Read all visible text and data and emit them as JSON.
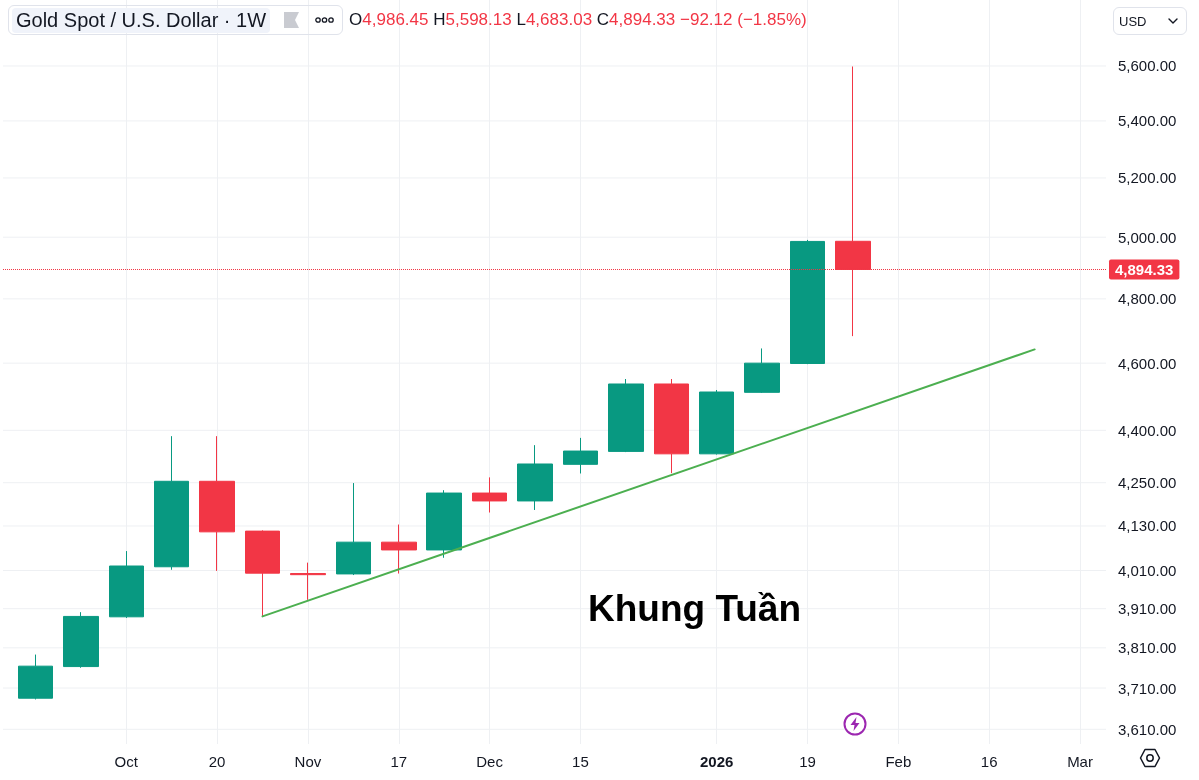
{
  "chart_data": {
    "type": "candlestick",
    "title": "Gold Spot / U.S. Dollar · 1W",
    "subtitle": "O4,986.45 H5,598.13 L4,683.03 C4,894.33 −92.12 (−1.85%)",
    "ylabel": "USD",
    "series": [
      {
        "x": [
          "2025-09-22",
          "2025-09-29",
          "2025-10-06",
          "2025-10-13",
          "2025-10-20",
          "2025-10-27",
          "2025-11-03",
          "2025-11-10",
          "2025-11-17",
          "2025-11-24",
          "2025-12-01",
          "2025-12-08",
          "2025-12-15",
          "2025-12-22",
          "2025-12-29",
          "2026-01-05",
          "2026-01-12",
          "2026-01-19",
          "2026-01-26"
        ],
        "ohlc": [
          [
            3685,
            3793,
            3682,
            3764
          ],
          [
            3763,
            3901,
            3760,
            3890
          ],
          [
            3889,
            4062,
            3886,
            4022
          ],
          [
            4020,
            4383,
            4012,
            4254
          ],
          [
            4254,
            4383,
            4009,
            4114
          ],
          [
            4116,
            4118,
            3890,
            4003
          ],
          [
            4002,
            4031,
            3933,
            3999
          ],
          [
            4001,
            4249,
            3998,
            4086
          ],
          [
            4086,
            4134,
            4002,
            4065
          ],
          [
            4065,
            4229,
            4044,
            4221
          ],
          [
            4221,
            4265,
            4167,
            4199
          ],
          [
            4199,
            4357,
            4174,
            4303
          ],
          [
            4302,
            4378,
            4276,
            4340
          ],
          [
            4339,
            4552,
            4337,
            4537
          ],
          [
            4537,
            4552,
            4277,
            4332
          ],
          [
            4332,
            4519,
            4330,
            4513
          ],
          [
            4512,
            4645,
            4510,
            4600
          ],
          [
            4599,
            4991,
            4597,
            4986
          ],
          [
            4986.45,
            5598.13,
            4683.03,
            4894.33
          ]
        ],
        "colors": [
          "#089981",
          "#089981",
          "#089981",
          "#089981",
          "#f23645",
          "#f23645",
          "#f23645",
          "#089981",
          "#f23645",
          "#089981",
          "#f23645",
          "#089981",
          "#089981",
          "#089981",
          "#f23645",
          "#089981",
          "#089981",
          "#089981",
          "#f23645"
        ]
      },
      {
        "type": "line",
        "x": [
          "2025-10-27",
          "2026-02-23"
        ],
        "values": [
          3890,
          4642
        ],
        "color": "#4caf50",
        "marker": "none",
        "line_style": "solid"
      }
    ],
    "xlim": [
      "2025-09-17",
      "2026-03-06"
    ],
    "xticks": [
      {
        "value": "2025-10-06",
        "label": "Oct"
      },
      {
        "value": "2025-10-20",
        "label": "20"
      },
      {
        "value": "2025-11-03",
        "label": "Nov"
      },
      {
        "value": "2025-11-17",
        "label": "17"
      },
      {
        "value": "2025-12-01",
        "label": "Dec"
      },
      {
        "value": "2025-12-15",
        "label": "15"
      },
      {
        "value": "2026-01-05",
        "label": "2026"
      },
      {
        "value": "2026-01-19",
        "label": "19"
      },
      {
        "value": "2026-02-02",
        "label": "Feb"
      },
      {
        "value": "2026-02-16",
        "label": "16"
      },
      {
        "value": "2026-03-02",
        "label": "Mar"
      }
    ],
    "ylim": [
      3575,
      5850
    ],
    "yticks": [
      {
        "value": 3610,
        "label": "3,610.00"
      },
      {
        "value": 3710,
        "label": "3,710.00"
      },
      {
        "value": 3810,
        "label": "3,810.00"
      },
      {
        "value": 3910,
        "label": "3,910.00"
      },
      {
        "value": 4010,
        "label": "4,010.00"
      },
      {
        "value": 4130,
        "label": "4,130.00"
      },
      {
        "value": 4250,
        "label": "4,250.00"
      },
      {
        "value": 4400,
        "label": "4,400.00"
      },
      {
        "value": 4600,
        "label": "4,600.00"
      },
      {
        "value": 4800,
        "label": "4,800.00"
      },
      {
        "value": 5000,
        "label": "5,000.00"
      },
      {
        "value": 5200,
        "label": "5,200.00"
      },
      {
        "value": 5400,
        "label": "5,400.00"
      },
      {
        "value": 5600,
        "label": "5,600.00"
      }
    ],
    "log": true,
    "grid": true,
    "ref_lines": [
      {
        "axis": "y",
        "value": 4894.33,
        "label": "4,894.33",
        "color": "#f23645",
        "line_style": "dotted"
      }
    ],
    "annotations": [
      "Khung Tuần"
    ]
  }
}
